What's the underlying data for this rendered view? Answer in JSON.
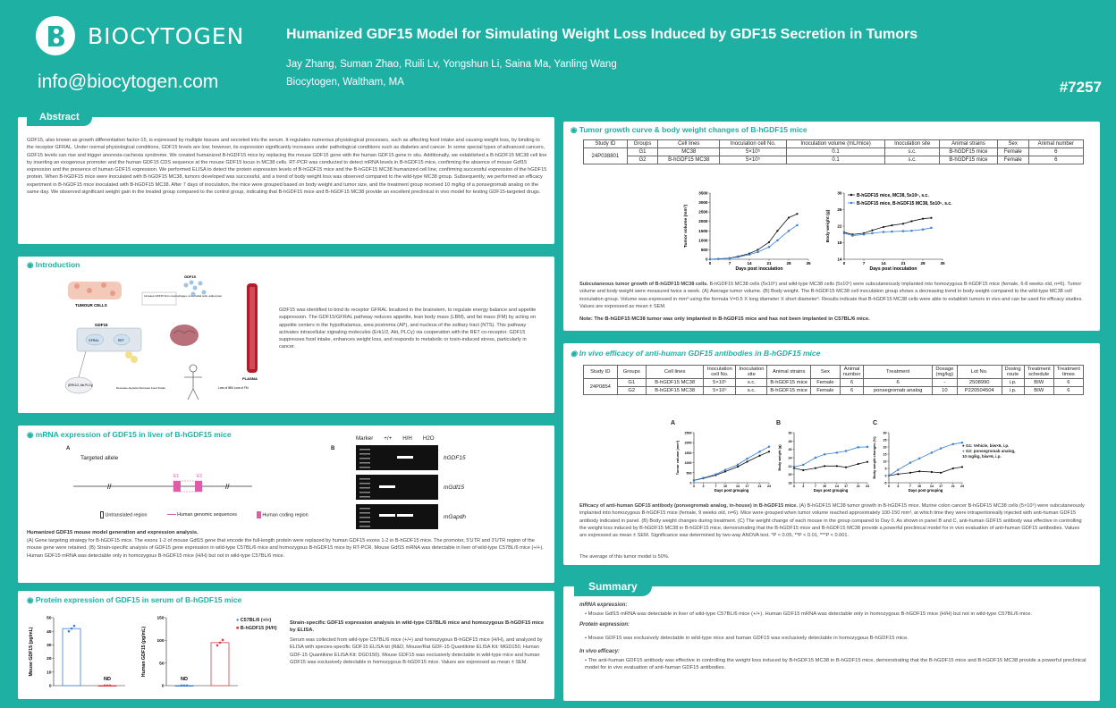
{
  "header": {
    "logo_text": "BIOCYTOGEN",
    "email": "info@biocytogen.com",
    "title": "Humanized GDF15 Model for Simulating Weight Loss Induced by GDF15 Secretion in Tumors",
    "authors": "Jay Zhang, Suman Zhao, Ruili Lv, Yongshun Li, Saina Ma, Yanling Wang",
    "affiliation": "Biocytogen, Waltham, MA",
    "poster_number": "#7257"
  },
  "abstract": {
    "heading": "Abstract",
    "text": "GDF15, also known as growth differentiation factor-15, is expressed by multiple tissues and secreted into the serum. It regulates numerous physiological processes, such as affecting food intake and causing weight loss, by binding to the receptor GFRAL. Under normal physiological conditions, GDF15 levels are low; however, its expression significantly increases under pathological conditions such as diabetes and cancer. In some special types of advanced cancers, GDF15 levels can rise and trigger anorexia-cachexia syndrome. We created humanized B-hGDF15 mice by replacing the mouse GDF15 gene with the human GDF15 gene in situ. Additionally, we established a B-hGDF15 MC38 cell line by inserting an exogenous promoter and the human GDF15 CDS sequence at the mouse GDF15 locus in MC38 cells. RT-PCR was conducted to detect mRNA levels in B-hGDF15 mice, confirming the absence of mouse Gdf15 expression and the presence of human GDF15 expression. We performed ELISA to detect the protein expression levels of B-hGDF15 mice and the B-hGDF15 MC38 humanized cell line, confirming successful expression of the hGDF15 protein. When B-hGDF15 mice were inoculated with B-hGDF15 MC38, tumors developed was successful, and a trend of body weight loss was observed compared to the wild-type MC38 group. Subsequently, we performed an efficacy experiment in B-hGDF15 mice inoculated with B-hGDF15 MC38. After 7 days of inoculation, the mice were grouped based on body weight and tumor size, and the treatment group received 10 mg/kg of a ponsegromab analog on the same day. We observed significant weight gain in the treated group compared to the control group, indicating that B-hGDF15 mice and B-hGDF15 MC38 provide an excellent preclinical in vivo model for testing GDF15-targeted drugs."
  },
  "introduction": {
    "heading": "Introduction",
    "text": "GDF15 was identified to bind its receptor GFRAL localized in the brainstem, to regulate energy balance and appetite suppression. The GDF15/GFRAL pathway reduces appetite, lean body mass (LBM), and fat mass (FM) by acting on appetite centers in the hypothalamus, area postrema (AP), and nucleus of the solitary tract (NTS). This pathway activates intracellular signaling molecules (Erk1/2, Akt, PLCγ) via cooperation with the RET co-receptor. GDF15 suppresses food intake, enhances weight loss, and responds to metabolic or toxin-induced stress, particularly in cancer.",
    "diagram": {
      "tumour_cells": "TUMOUR CELLS",
      "increase": "Increase GDF15 from macrophages, endothelial cells, adipocytes",
      "gdf15": "GDF15",
      "gdf15_label": "GDF15",
      "gfral": "GFRAL",
      "ret": "RET",
      "signals": "(ERK1/2, Akt PLCγ)",
      "decrease": "Decrease Appetite Decrease Food Intake",
      "plasma": "PLASMA",
      "loss": "Loss of IBM Loss of FM"
    }
  },
  "mrna": {
    "heading": "mRNA expression of GDF15 in liver of B-hGDF15 mice",
    "panel_a": "A",
    "panel_b": "B",
    "targeted_allele": "Targeted allele",
    "e1": "E1",
    "e2": "E2",
    "legend": [
      "Untranslated region",
      "Human genomic sequences",
      "Human coding region"
    ],
    "gel_header": [
      "Marker",
      "+/+",
      "H/H",
      "H2O"
    ],
    "gel_labels": [
      "hGDF15",
      "mGdf15",
      "mGapdh"
    ],
    "caption_title": "Humanized GDF15 mouse model generation and expression analysis.",
    "caption": "(A) Gene targeting strategy for B-hGDF15 mice. The exons 1-2 of mouse Gdf15 gene that encode the full-length protein were replaced by human GDF15 exons 1-2 in B-hGDF15 mice. The promoter, 5'UTR and 3'UTR region of the mouse gene were retained. (B) Strain-specific analysis of GDF15 gene expression in wild-type C57BL/6 mice and homozygous B-hGDF15 mice by RT-PCR. Mouse Gdf15 mRNA was detectable in liver of wild-type C57BL/6 mice (+/+). Human GDF15 mRNA was detectable only in homozygous B-hGDF15 mice (H/H) but not in wild-type C57BL/6 mice."
  },
  "protein": {
    "heading": "Protein expression of GDF15 in serum of B-hGDF15 mice",
    "legend": [
      "C57BL/6 (+/+)",
      "B-hGDF15 (H/H)"
    ],
    "nd": "ND",
    "caption_title": "Strain-specific GDF15 expression analysis in wild-type C57BL/6 mice and homozygous B-hGDF15 mice by ELISA.",
    "caption": "Serum was collected from wild-type C57BL/6 mice (+/+) and homozygous B-hGDF15 mice (H/H), and analyzed by ELISA with species-specific GDF15 ELISA kit (R&D, Mouse/Rat GDF-15 Quantikine ELISA Kit: MGD150, Human GDF-15 Quantikine ELISA Kit: DGD150). Mouse GDF15 was exclusively detectable in wild-type mice and human GDF15 was exclusively detectable in homozygous B-hGDF15 mice. Values are expressed as mean ± SEM."
  },
  "tumor_growth": {
    "heading": "Tumor growth curve & body weight changes of B-hGDF15 mice",
    "table_headers": [
      "Study ID",
      "Groups",
      "Cell lines",
      "Inoculation cell No.",
      "Inoculation volume (mL/mice)",
      "Inoculation site",
      "Animal strains",
      "Sex",
      "Animal number"
    ],
    "study_id": "24P038801",
    "rows": [
      [
        "G1",
        "MC38",
        "5×10⁵",
        "0.1",
        "s.c.",
        "B-hGDF15 mice",
        "Female",
        "6"
      ],
      [
        "G2",
        "B-hGDF15 MC38",
        "5×10⁵",
        "0.1",
        "s.c.",
        "B-hGDF15 mice",
        "Female",
        "6"
      ]
    ],
    "caption_title": "Subcutaneous tumor growth of B-hGDF15 MC38 cells.",
    "caption": "B-hGDF15 MC38 cells (5x10⁵) and wild-type MC38 cells (5x10⁵) were subcutaneously implanted into homozygous B-hGDF15 mice (female, 6-8 weeks old, n=6). Tumor volume and body weight were measured twice a week. (A) Average tumor volume. (B) Body weight. The B-hGDF15 MC38 cell inoculation group shows a decreasing trend in body weight compared to the wild-type MC38 cell inoculation group. Volume was expressed in mm³ using the formula V=0.5 X long diameter X short diameter². Results indicate that B-hGDF15 MC38 cells were able to establish tumors in vivo and can be used for efficacy studies. Values are expressed as mean ± SEM.",
    "note": "Note: The B-hGDF15 MC38 tumor was only implanted in B-hGDF15 mice and has not been implanted in C57BL/6 mice."
  },
  "invivo": {
    "heading": "In vivo efficacy of anti-human GDF15 antibodies in B-hGDF15 mice",
    "table_headers": [
      "Study ID",
      "Groups",
      "Cell lines",
      "Inoculation cell No.",
      "Inoculation site",
      "Animal strains",
      "Sex",
      "Animal number",
      "Treatment",
      "Dosage (mg/kg)",
      "Lot No.",
      "Dosing route",
      "Treatment schedule",
      "Treatment times"
    ],
    "study_id": "24P0854",
    "rows": [
      [
        "G1",
        "B-hGDF15 MC38",
        "5×10⁵",
        "s.c.",
        "B-hGDF15 mice",
        "Female",
        "6",
        "6",
        "-",
        "2508990",
        "i.p.",
        "BIW",
        "6"
      ],
      [
        "G2",
        "B-hGDF15 MC38",
        "5×10⁵",
        "s.c.",
        "B-hGDF15 mice",
        "Female",
        "6",
        "ponsegromab analog",
        "10",
        "P220504504",
        "i.p.",
        "BIW",
        "6"
      ]
    ],
    "panel_labels": [
      "A",
      "B",
      "C"
    ],
    "legend": [
      "G1: Vehicle, biw×6, i.p.",
      "G2: ponsegromab analog, 10 mg/kg, biw×6, i.p."
    ],
    "caption_title": "Efficacy of anti-human GDF15 antibody (ponsegromab analog, in-house) in B-hGDF15 mice.",
    "caption": "(A) B-hGDF15 MC38 tumor growth in B-hGDF15 mice. Murine colon cancer B-hGDF15 MC38 cells (5×10⁵) were subcutaneously implanted into homozygous B-hGDF15 mice (female, 9 weeks old, n=6). Mice were grouped when tumor volume reached approximately 100-150 mm³, at which time they were intraperitoneally injected with anti-human GDF15 antibody indicated in panel. (B) Body weight changes during treatment. (C) The weight change of each mouse in the group compared to Day 0. As shown in panel B and C, anti-human GDF15 antibody was effective in controlling the weight loss induced by B-hGDF15 MC38 in B-hGDF15 mice, demonstrating that the B-hGDF15 mice and B-hGDF15 MC38 provide a powerful preclinical model for in vivo evaluation of anti-human GDF15 antibodies. Values are expressed as mean ± SEM. Significance was determined by two-way ANOVA test. *P < 0.05, **P < 0.01, ***P < 0.001.",
    "note": "The average of this tumor model is 50%."
  },
  "summary": {
    "heading": "Summary",
    "mrna_title": "mRNA expression:",
    "mrna_text": "Mouse Gdf15 mRNA was detectable in liver of wild-type C57BL/6 mice (+/+). Human GDF15 mRNA was detectable only in homozygous B-hGDF15 mice (H/H) but not in wild-type C57BL/6 mice.",
    "protein_title": "Protein expression:",
    "protein_text": "Mouse GDF15 was exclusively detectable in wild-type mice and human GDF15 was exclusively detectable in homozygous B-hGDF15 mice.",
    "invivo_title": "In vivo efficacy:",
    "invivo_text": "The anti-human GDF15 antibody was effective in controlling the weight loss induced by B-hGDF15 MC38 in B-hGDF15 mice, demonstrating that the B-hGDF15 mice and B-hGDF15 MC38 provide a powerful preclinical model for in vivo evaluation of anti-human GDF15 antibodies."
  },
  "chart_data": [
    {
      "type": "line",
      "title": "",
      "xlabel": "Days post inoculation",
      "ylabel": "Tumor volume (mm³)",
      "x": [
        0,
        3,
        7,
        10,
        14,
        17,
        21,
        24,
        28,
        31
      ],
      "xticks": [
        0,
        7,
        14,
        21,
        28,
        35
      ],
      "ylim": [
        0,
        3500
      ],
      "yticks": [
        0,
        500,
        1000,
        1500,
        2000,
        2500,
        3000,
        3500
      ],
      "series": [
        {
          "name": "B-hGDF15 mice, MC38, 5x10⁵, s.c.",
          "color": "#111111",
          "values": [
            0,
            20,
            60,
            150,
            300,
            500,
            900,
            1500,
            2200,
            2400
          ]
        },
        {
          "name": "B-hGDF15 mice, B-hGDF15 MC38, 5x10⁵, s.c.",
          "color": "#3a7fd0",
          "values": [
            0,
            15,
            50,
            120,
            250,
            380,
            650,
            1000,
            1500,
            1800
          ]
        }
      ]
    },
    {
      "type": "line",
      "title": "",
      "xlabel": "Days post inoculation",
      "ylabel": "Body weight (g)",
      "x": [
        0,
        3,
        7,
        10,
        14,
        17,
        21,
        24,
        28,
        31
      ],
      "xticks": [
        0,
        7,
        14,
        21,
        28,
        35
      ],
      "ylim": [
        14,
        30
      ],
      "yticks": [
        14,
        18,
        22,
        26,
        30
      ],
      "legend": "top-left",
      "series": [
        {
          "name": "B-hGDF15 mice, MC38, 5x10⁵, s.c.",
          "color": "#111111",
          "values": [
            20.5,
            20.0,
            20.3,
            21.0,
            21.8,
            22.2,
            22.6,
            23.2,
            23.8,
            24.0
          ]
        },
        {
          "name": "B-hGDF15 mice, B-hGDF15 MC38, 5x10⁵, s.c.",
          "color": "#3a7fd0",
          "values": [
            20.3,
            19.7,
            20.0,
            20.3,
            20.6,
            20.7,
            20.8,
            20.9,
            21.2,
            21.6
          ]
        }
      ]
    },
    {
      "type": "bar",
      "title": "",
      "ylabel": "Mouse GDF15 (pg/mL)",
      "ylim": [
        0,
        50
      ],
      "yticks": [
        0,
        10,
        20,
        30,
        40,
        50
      ],
      "categories": [
        "C57BL/6 (+/+)",
        "B-hGDF15 (H/H)"
      ],
      "values": [
        42,
        0
      ],
      "colors": [
        "#3a7fd0",
        "#d94040"
      ],
      "annotations": [
        "",
        "ND"
      ]
    },
    {
      "type": "bar",
      "title": "",
      "ylabel": "Human GDF15 (pg/mL)",
      "ylim": [
        0,
        150
      ],
      "yticks": [
        0,
        50,
        100,
        150
      ],
      "categories": [
        "C57BL/6 (+/+)",
        "B-hGDF15 (H/H)"
      ],
      "values": [
        0,
        95
      ],
      "colors": [
        "#3a7fd0",
        "#d94040"
      ],
      "annotations": [
        "ND",
        ""
      ]
    },
    {
      "type": "line",
      "title": "",
      "xlabel": "Days post grouping",
      "ylabel": "Tumor volume (mm³)",
      "x": [
        0,
        3,
        7,
        10,
        14,
        17,
        21,
        24
      ],
      "xticks": [
        0,
        3,
        7,
        10,
        14,
        17,
        21,
        24
      ],
      "ylim": [
        0,
        2500
      ],
      "yticks": [
        0,
        500,
        1000,
        1500,
        2000,
        2500
      ],
      "series": [
        {
          "name": "G1: Vehicle, biw×6, i.p.",
          "color": "#111111",
          "values": [
            120,
            220,
            380,
            560,
            800,
            1050,
            1350,
            1550
          ]
        },
        {
          "name": "G2: ponsegromab analog, 10 mg/kg, biw×6, i.p.",
          "color": "#3a7fd0",
          "values": [
            120,
            240,
            420,
            640,
            900,
            1200,
            1550,
            1800
          ]
        }
      ]
    },
    {
      "type": "line",
      "title": "",
      "xlabel": "Days post grouping",
      "ylabel": "Body weight (g)",
      "x": [
        0,
        3,
        7,
        10,
        14,
        17,
        21,
        24
      ],
      "xticks": [
        0,
        3,
        7,
        10,
        14,
        17,
        21,
        24
      ],
      "ylim": [
        18,
        30
      ],
      "yticks": [
        18,
        20,
        22,
        24,
        26,
        28,
        30
      ],
      "series": [
        {
          "name": "G1: Vehicle, biw×6, i.p.",
          "color": "#111111",
          "values": [
            21.5,
            21.0,
            21.5,
            22.0,
            22.0,
            21.7,
            22.5,
            23.0
          ]
        },
        {
          "name": "G2: ponsegromab analog, 10 mg/kg, biw×6, i.p.",
          "color": "#3a7fd0",
          "values": [
            21.8,
            22.3,
            24.0,
            24.8,
            25.2,
            25.6,
            26.5,
            26.6
          ]
        }
      ]
    },
    {
      "type": "line",
      "title": "",
      "xlabel": "Days post grouping",
      "ylabel": "Body weight changes (%)",
      "x": [
        0,
        3,
        7,
        10,
        14,
        17,
        21,
        24
      ],
      "xticks": [
        0,
        3,
        7,
        10,
        14,
        17,
        21,
        24
      ],
      "ylim": [
        -5,
        30
      ],
      "yticks": [
        -5,
        0,
        5,
        10,
        15,
        20,
        25,
        30
      ],
      "legend": "right",
      "series": [
        {
          "name": "G1: Vehicle, biw×6, i.p.",
          "color": "#111111",
          "values": [
            0,
            1,
            2,
            3,
            2.5,
            2,
            5,
            6
          ]
        },
        {
          "name": "G2: ponsegromab analog, 10 mg/kg, biw×6, i.p.",
          "color": "#3a7fd0",
          "values": [
            0,
            4,
            9,
            12,
            16,
            19,
            22,
            23
          ]
        }
      ]
    }
  ]
}
